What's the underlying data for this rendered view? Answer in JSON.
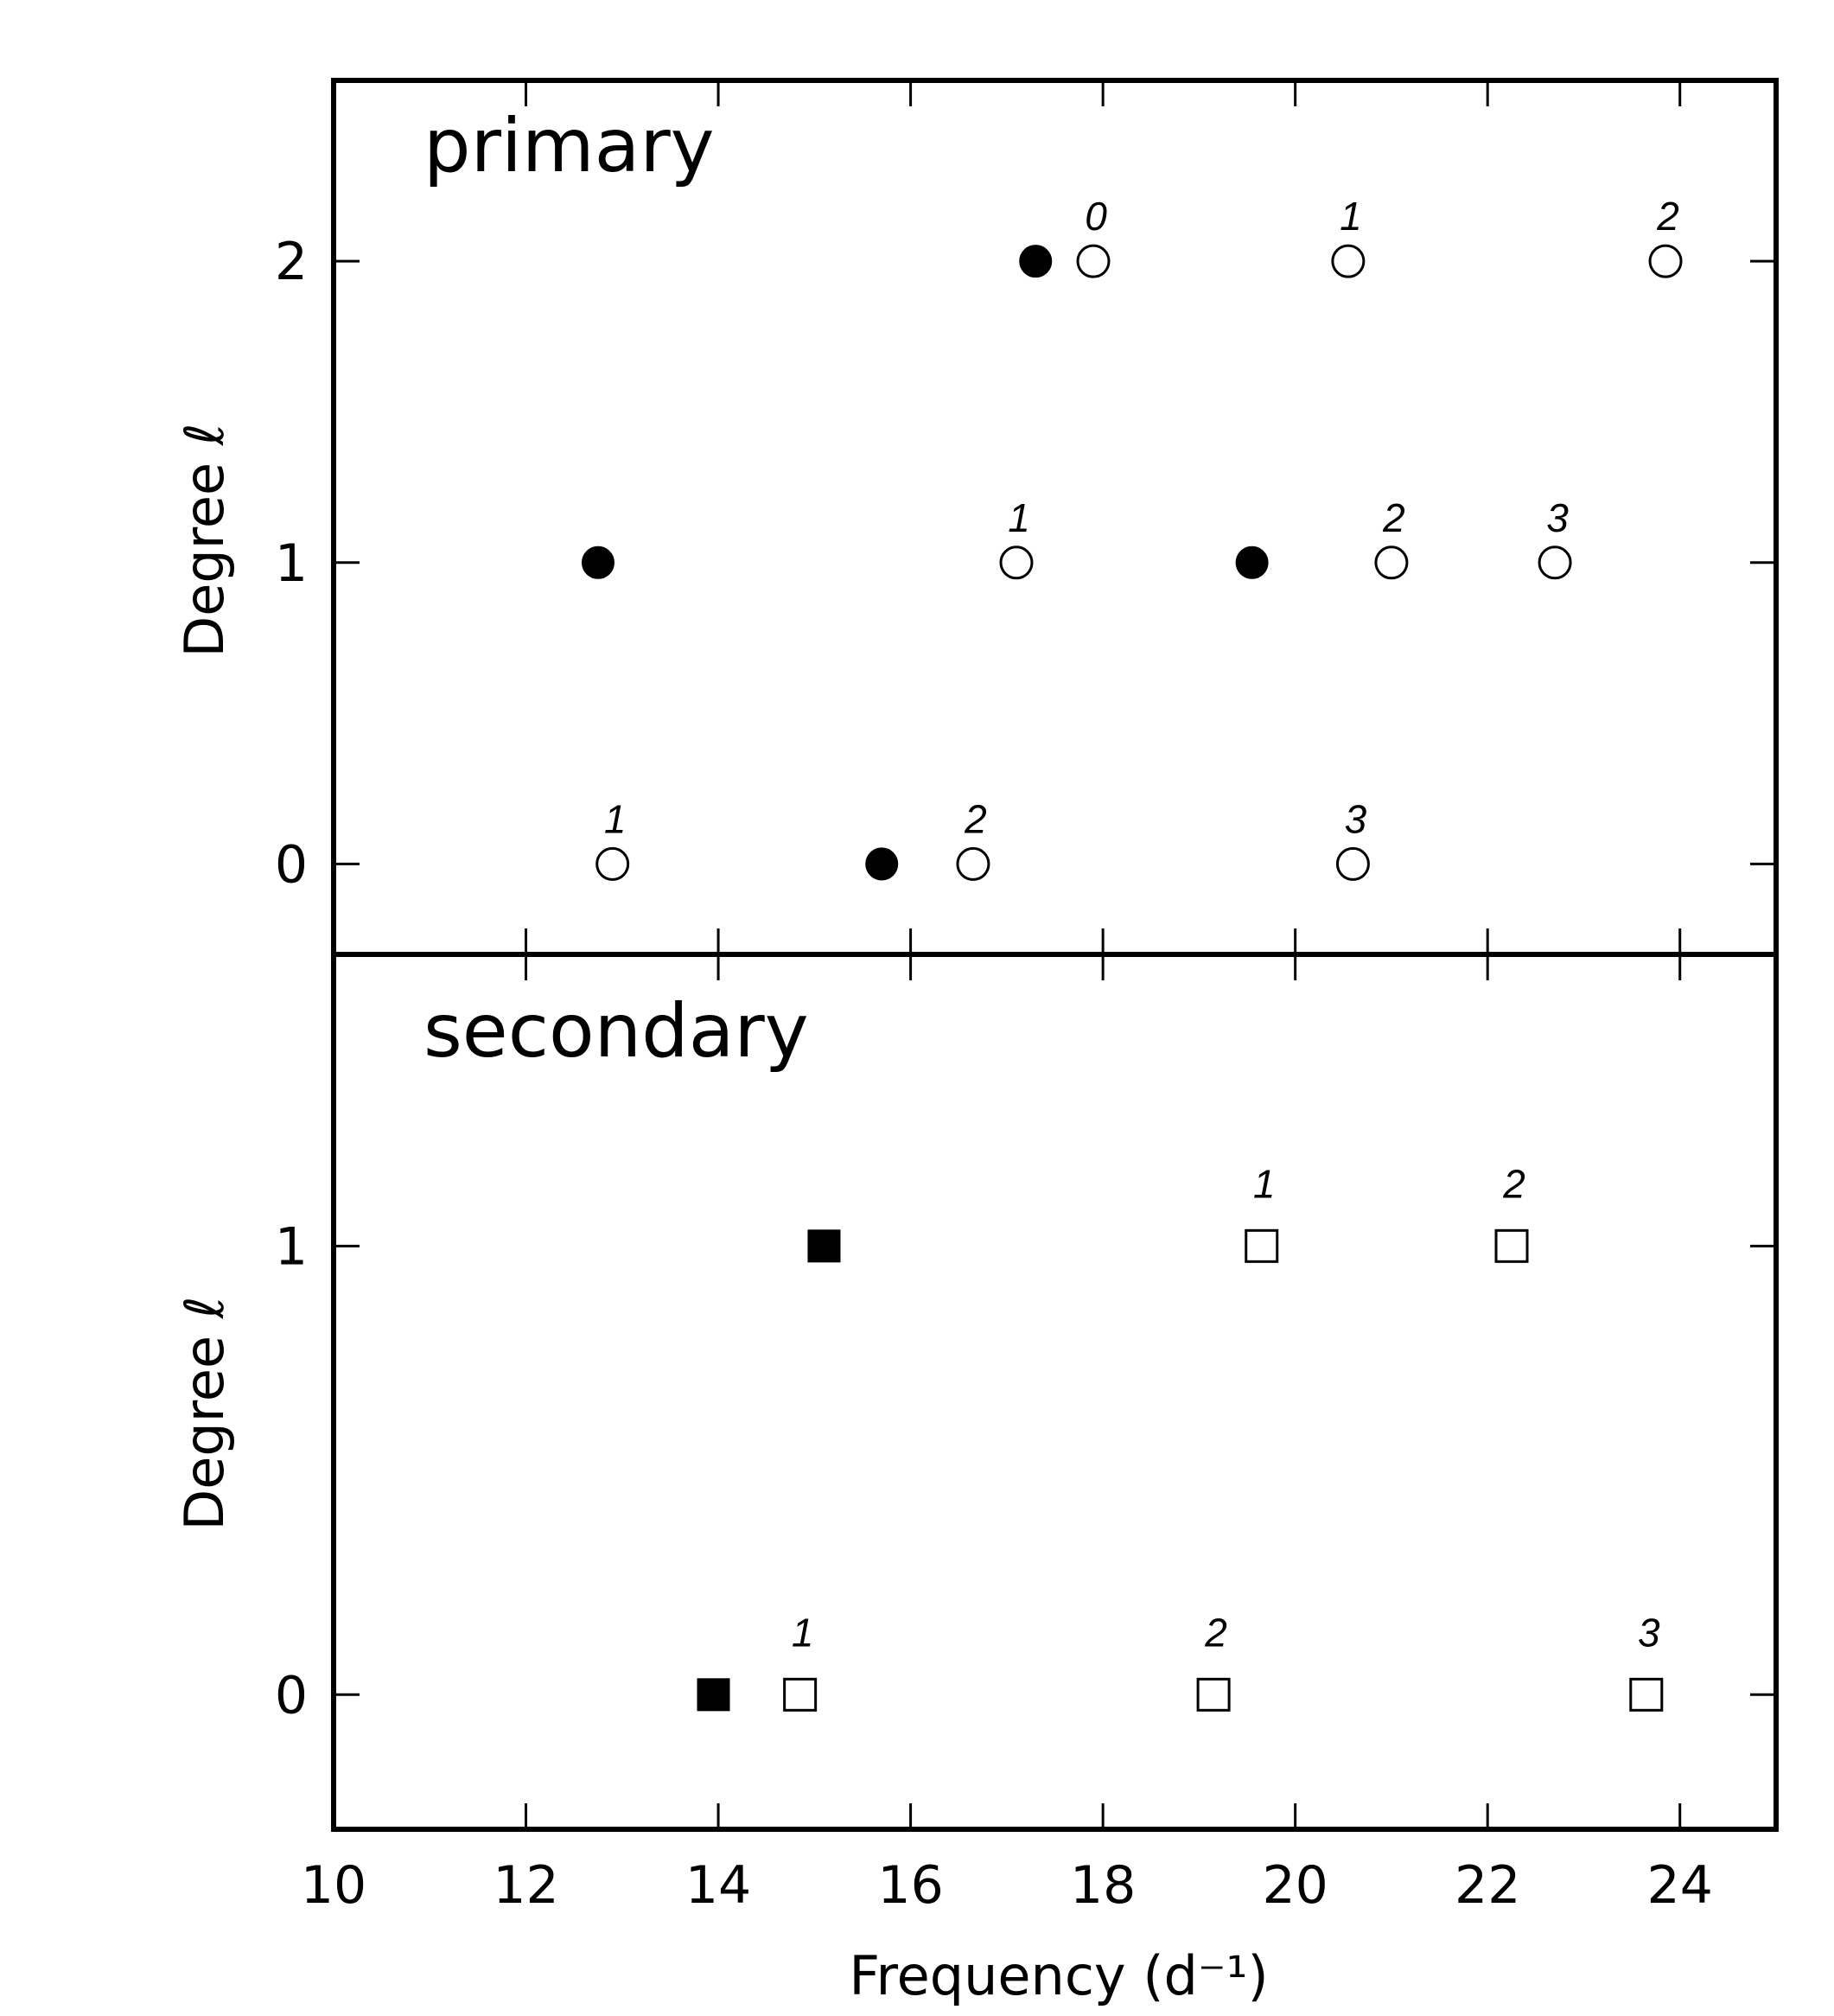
{
  "chart_data": [
    {
      "type": "scatter",
      "panel": "primary",
      "panel_label": "primary",
      "ylabel": "Degree ℓ",
      "xlim": [
        10,
        25
      ],
      "ylim": [
        -0.3,
        2.6
      ],
      "yticks": [
        "0",
        "1",
        "2"
      ],
      "marker": "circle",
      "filled_points": [
        {
          "x": 12.75,
          "y": 1
        },
        {
          "x": 15.7,
          "y": 0
        },
        {
          "x": 17.3,
          "y": 2
        },
        {
          "x": 19.55,
          "y": 1
        }
      ],
      "open_points": [
        {
          "x": 12.9,
          "y": 0,
          "label": "1"
        },
        {
          "x": 16.65,
          "y": 0,
          "label": "2"
        },
        {
          "x": 20.6,
          "y": 0,
          "label": "3"
        },
        {
          "x": 17.1,
          "y": 1,
          "label": "1"
        },
        {
          "x": 21.0,
          "y": 1,
          "label": "2"
        },
        {
          "x": 22.7,
          "y": 1,
          "label": "3"
        },
        {
          "x": 17.9,
          "y": 2,
          "label": "0"
        },
        {
          "x": 20.55,
          "y": 2,
          "label": "1"
        },
        {
          "x": 23.85,
          "y": 2,
          "label": "2"
        }
      ]
    },
    {
      "type": "scatter",
      "panel": "secondary",
      "panel_label": "secondary",
      "ylabel": "Degree ℓ",
      "xlim": [
        10,
        25
      ],
      "ylim": [
        -0.3,
        1.65
      ],
      "yticks": [
        "0",
        "1"
      ],
      "marker": "square",
      "filled_points": [
        {
          "x": 13.95,
          "y": 0
        },
        {
          "x": 15.1,
          "y": 1
        }
      ],
      "open_points": [
        {
          "x": 14.85,
          "y": 0,
          "label": "1"
        },
        {
          "x": 19.15,
          "y": 0,
          "label": "2"
        },
        {
          "x": 23.65,
          "y": 0,
          "label": "3"
        },
        {
          "x": 19.65,
          "y": 1,
          "label": "1"
        },
        {
          "x": 22.25,
          "y": 1,
          "label": "2"
        }
      ]
    }
  ],
  "xaxis": {
    "label": "Frequency (d⁻¹)",
    "ticks": [
      "10",
      "12",
      "14",
      "16",
      "18",
      "20",
      "22",
      "24"
    ]
  }
}
